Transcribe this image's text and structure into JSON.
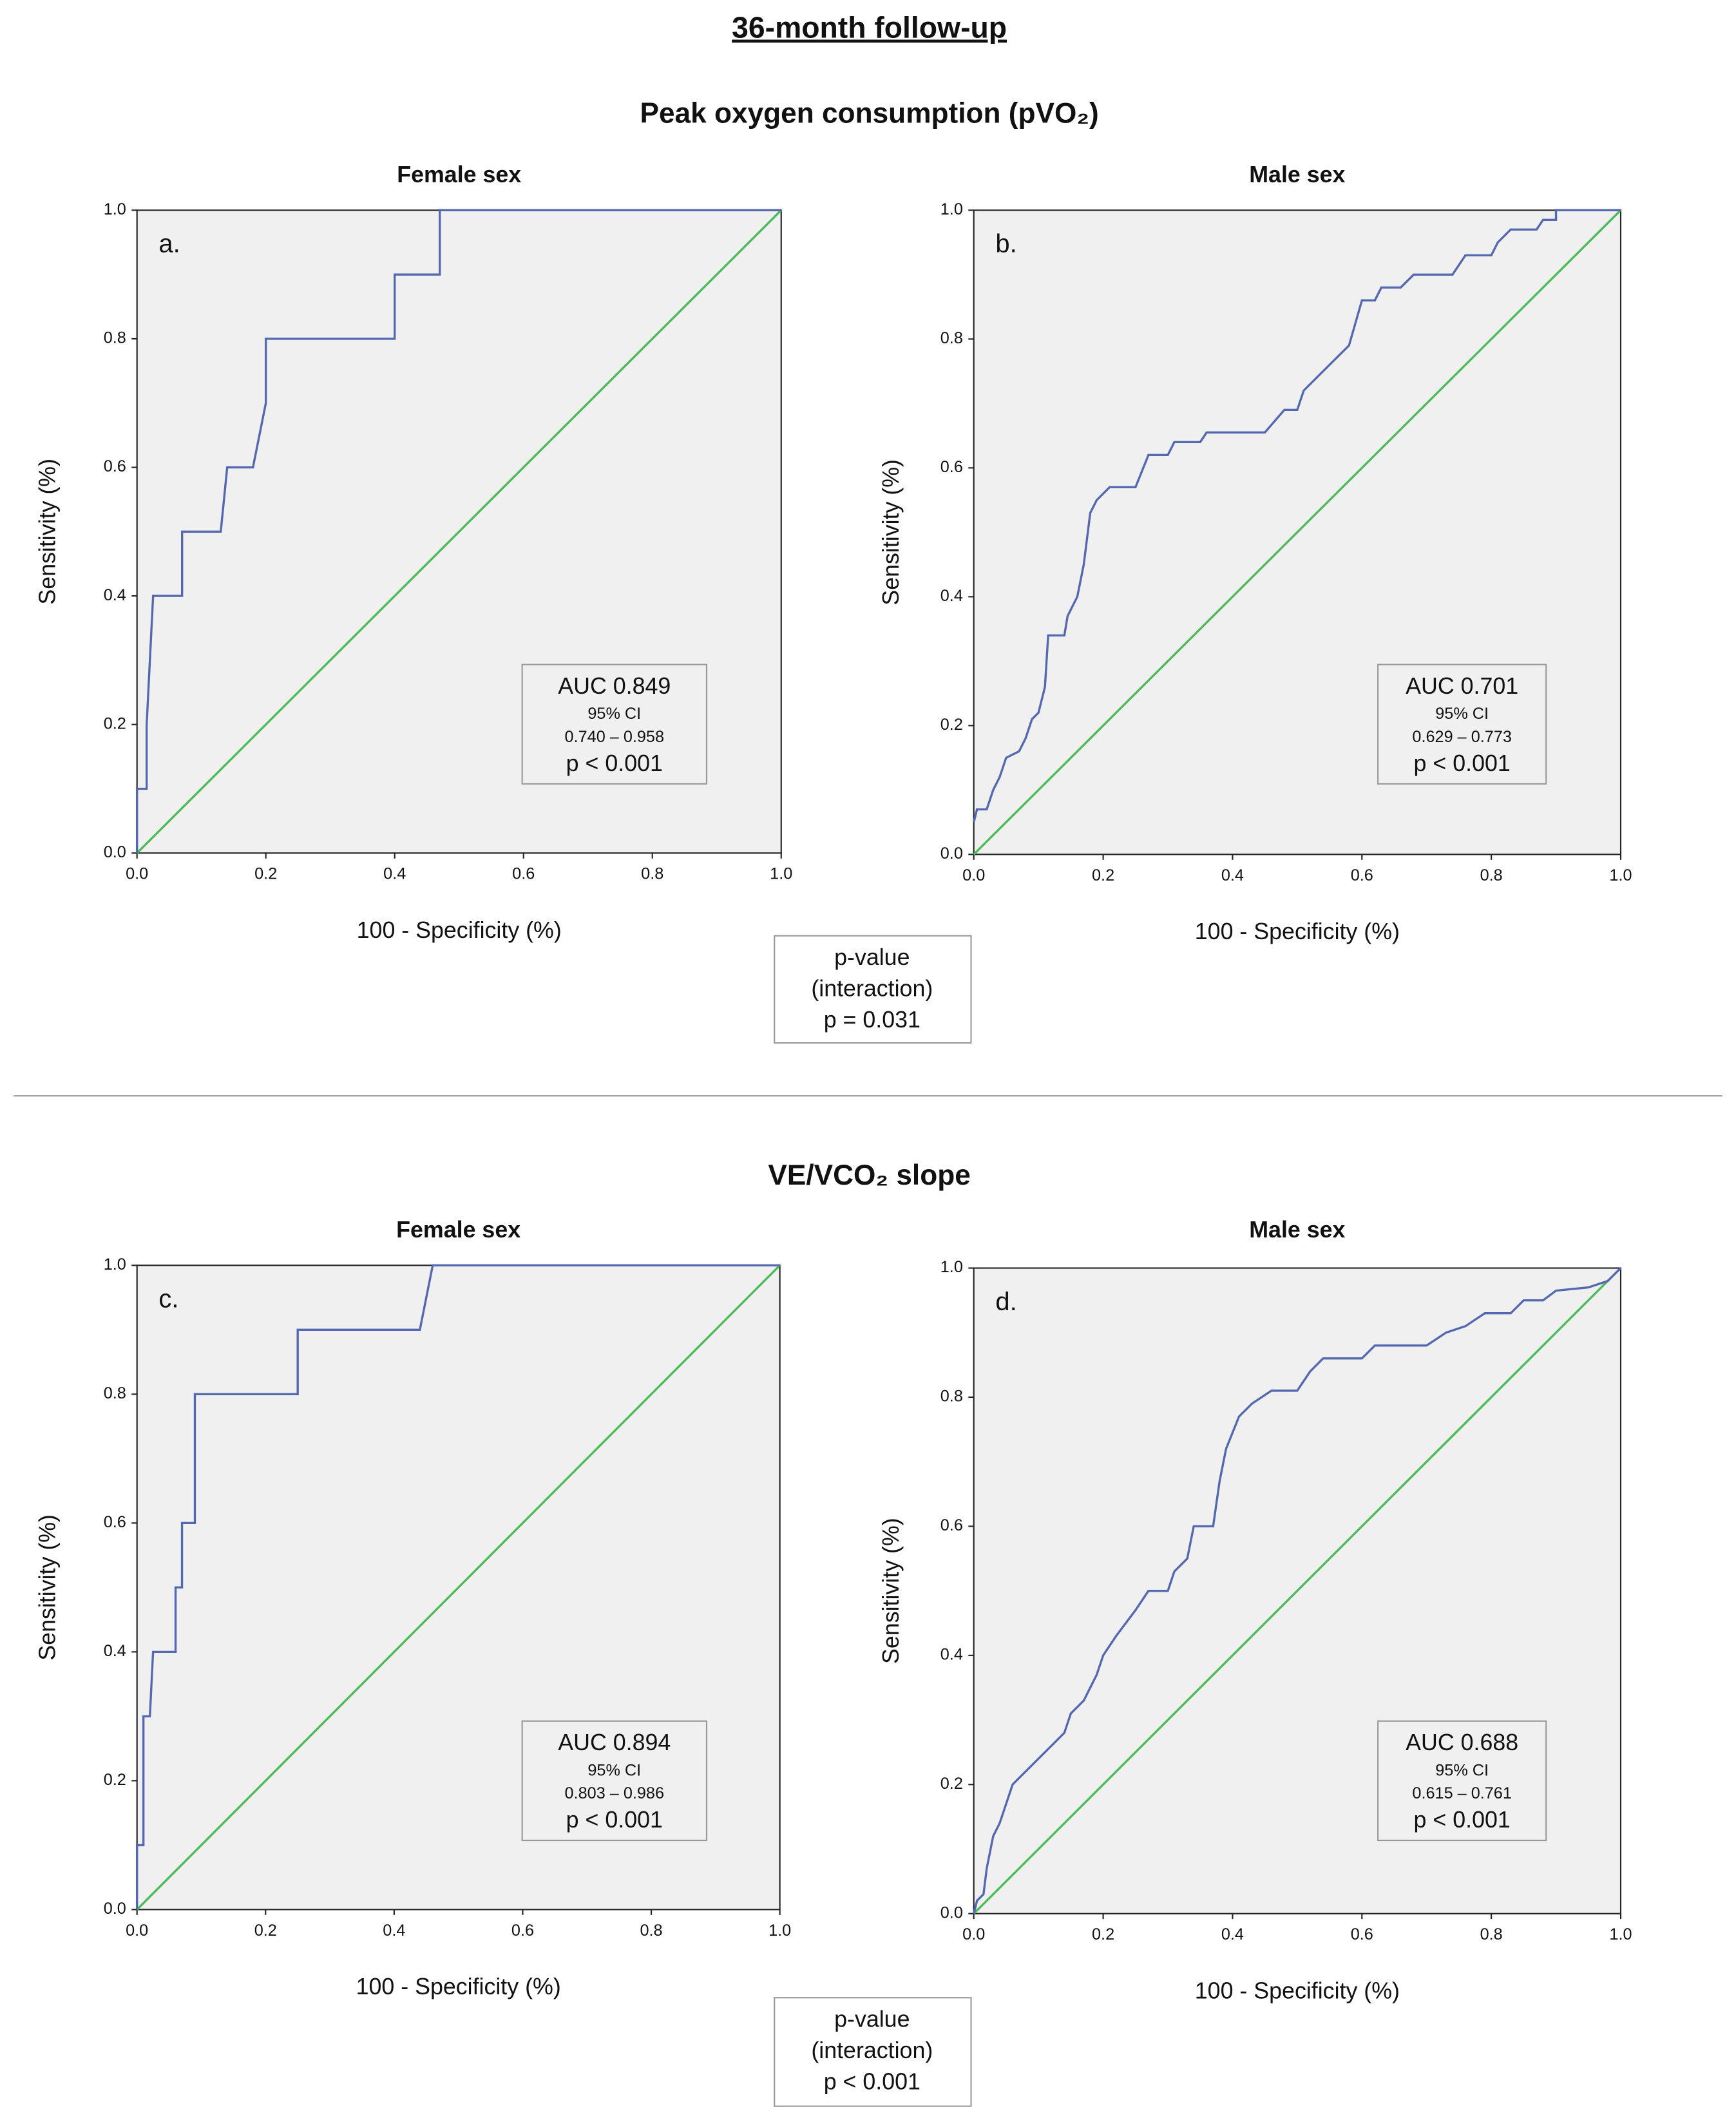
{
  "header": {
    "title": "36-month follow-up"
  },
  "sections": [
    {
      "title": "Peak oxygen consumption (pVO₂)",
      "interaction": [
        "p-value",
        "(interaction)",
        "p = 0.031"
      ]
    },
    {
      "title": "VE/VCO₂ slope",
      "interaction": [
        "p-value",
        "(interaction)",
        "p < 0.001"
      ]
    }
  ],
  "chart_data": [
    {
      "type": "line",
      "title": "Female sex",
      "panel": "a.",
      "xlabel": "100 - Specificity (%)",
      "ylabel": "Sensitivity (%)",
      "background": "#f0f0f0",
      "xlim": [
        0,
        1
      ],
      "ylim": [
        0,
        1
      ],
      "xticks": [
        {
          "value": 0,
          "label": "0.0"
        },
        {
          "value": 0.2,
          "label": "0.2"
        },
        {
          "value": 0.4,
          "label": "0.4"
        },
        {
          "value": 0.6,
          "label": "0.6"
        },
        {
          "value": 0.8,
          "label": "0.8"
        },
        {
          "value": 1,
          "label": "1.0"
        }
      ],
      "yticks": [
        {
          "value": 0,
          "label": "0.0"
        },
        {
          "value": 0.2,
          "label": "0.2"
        },
        {
          "value": 0.4,
          "label": "0.4"
        },
        {
          "value": 0.6,
          "label": "0.6"
        },
        {
          "value": 0.8,
          "label": "0.8"
        },
        {
          "value": 1,
          "label": "1.0"
        }
      ],
      "series": [
        {
          "color": "#5468b0",
          "x": [
            0,
            0,
            0.015,
            0.015,
            0.025,
            0.07,
            0.07,
            0.13,
            0.14,
            0.18,
            0.2,
            0.2,
            0.4,
            0.4,
            0.47,
            0.47,
            1
          ],
          "values": [
            0,
            0.1,
            0.1,
            0.2,
            0.4,
            0.4,
            0.5,
            0.5,
            0.6,
            0.6,
            0.7,
            0.8,
            0.8,
            0.9,
            0.9,
            1,
            1
          ]
        },
        {
          "color": "#4cbb57",
          "x": [
            0,
            1
          ],
          "values": [
            0,
            1
          ]
        }
      ],
      "annotation": [
        "AUC 0.849",
        "95% CI",
        "0.740 – 0.958",
        "p < 0.001"
      ]
    },
    {
      "type": "line",
      "title": "Male sex",
      "panel": "b.",
      "xlabel": "100 - Specificity (%)",
      "ylabel": "Sensitivity (%)",
      "background": "#f0f0f0",
      "xlim": [
        0,
        1
      ],
      "ylim": [
        0,
        1
      ],
      "xticks": [
        {
          "value": 0,
          "label": "0.0"
        },
        {
          "value": 0.2,
          "label": "0.2"
        },
        {
          "value": 0.4,
          "label": "0.4"
        },
        {
          "value": 0.6,
          "label": "0.6"
        },
        {
          "value": 0.8,
          "label": "0.8"
        },
        {
          "value": 1,
          "label": "1.0"
        }
      ],
      "yticks": [
        {
          "value": 0,
          "label": "0.0"
        },
        {
          "value": 0.2,
          "label": "0.2"
        },
        {
          "value": 0.4,
          "label": "0.4"
        },
        {
          "value": 0.6,
          "label": "0.6"
        },
        {
          "value": 0.8,
          "label": "0.8"
        },
        {
          "value": 1,
          "label": "1.0"
        }
      ],
      "series": [
        {
          "color": "#5468b0",
          "x": [
            0,
            0.005,
            0.02,
            0.03,
            0.04,
            0.05,
            0.07,
            0.08,
            0.09,
            0.1,
            0.11,
            0.115,
            0.14,
            0.145,
            0.16,
            0.17,
            0.18,
            0.19,
            0.21,
            0.25,
            0.27,
            0.3,
            0.31,
            0.35,
            0.36,
            0.45,
            0.48,
            0.5,
            0.51,
            0.53,
            0.56,
            0.58,
            0.6,
            0.62,
            0.63,
            0.66,
            0.68,
            0.74,
            0.76,
            0.8,
            0.81,
            0.83,
            0.87,
            0.88,
            0.9,
            0.9,
            1
          ],
          "values": [
            0.05,
            0.07,
            0.07,
            0.1,
            0.12,
            0.15,
            0.16,
            0.18,
            0.21,
            0.22,
            0.26,
            0.34,
            0.34,
            0.37,
            0.4,
            0.45,
            0.53,
            0.55,
            0.57,
            0.57,
            0.62,
            0.62,
            0.64,
            0.64,
            0.655,
            0.655,
            0.69,
            0.69,
            0.72,
            0.74,
            0.77,
            0.79,
            0.86,
            0.86,
            0.88,
            0.88,
            0.9,
            0.9,
            0.93,
            0.93,
            0.95,
            0.97,
            0.97,
            0.985,
            0.985,
            1,
            1
          ]
        },
        {
          "color": "#4cbb57",
          "x": [
            0,
            1
          ],
          "values": [
            0,
            1
          ]
        }
      ],
      "annotation": [
        "AUC 0.701",
        "95% CI",
        "0.629 – 0.773",
        "p < 0.001"
      ]
    },
    {
      "type": "line",
      "title": "Female sex",
      "panel": "c.",
      "xlabel": "100 - Specificity (%)",
      "ylabel": "Sensitivity (%)",
      "background": "#f0f0f0",
      "xlim": [
        0,
        1
      ],
      "ylim": [
        0,
        1
      ],
      "xticks": [
        {
          "value": 0,
          "label": "0.0"
        },
        {
          "value": 0.2,
          "label": "0.2"
        },
        {
          "value": 0.4,
          "label": "0.4"
        },
        {
          "value": 0.6,
          "label": "0.6"
        },
        {
          "value": 0.8,
          "label": "0.8"
        },
        {
          "value": 1,
          "label": "1.0"
        }
      ],
      "yticks": [
        {
          "value": 0,
          "label": "0.0"
        },
        {
          "value": 0.2,
          "label": "0.2"
        },
        {
          "value": 0.4,
          "label": "0.4"
        },
        {
          "value": 0.6,
          "label": "0.6"
        },
        {
          "value": 0.8,
          "label": "0.8"
        },
        {
          "value": 1,
          "label": "1.0"
        }
      ],
      "series": [
        {
          "color": "#5468b0",
          "x": [
            0,
            0,
            0.01,
            0.01,
            0.02,
            0.025,
            0.06,
            0.06,
            0.07,
            0.07,
            0.09,
            0.09,
            0.25,
            0.25,
            0.44,
            0.46,
            1
          ],
          "values": [
            0,
            0.1,
            0.1,
            0.3,
            0.3,
            0.4,
            0.4,
            0.5,
            0.5,
            0.6,
            0.6,
            0.8,
            0.8,
            0.9,
            0.9,
            1,
            1
          ]
        },
        {
          "color": "#4cbb57",
          "x": [
            0,
            1
          ],
          "values": [
            0,
            1
          ]
        }
      ],
      "annotation": [
        "AUC 0.894",
        "95% CI",
        "0.803 – 0.986",
        "p < 0.001"
      ]
    },
    {
      "type": "line",
      "title": "Male sex",
      "panel": "d.",
      "xlabel": "100 - Specificity (%)",
      "ylabel": "Sensitivity (%)",
      "background": "#f0f0f0",
      "xlim": [
        0,
        1
      ],
      "ylim": [
        0,
        1
      ],
      "xticks": [
        {
          "value": 0,
          "label": "0.0"
        },
        {
          "value": 0.2,
          "label": "0.2"
        },
        {
          "value": 0.4,
          "label": "0.4"
        },
        {
          "value": 0.6,
          "label": "0.6"
        },
        {
          "value": 0.8,
          "label": "0.8"
        },
        {
          "value": 1,
          "label": "1.0"
        }
      ],
      "yticks": [
        {
          "value": 0,
          "label": "0.0"
        },
        {
          "value": 0.2,
          "label": "0.2"
        },
        {
          "value": 0.4,
          "label": "0.4"
        },
        {
          "value": 0.6,
          "label": "0.6"
        },
        {
          "value": 0.8,
          "label": "0.8"
        },
        {
          "value": 1,
          "label": "1.0"
        }
      ],
      "series": [
        {
          "color": "#5468b0",
          "x": [
            0,
            0.005,
            0.015,
            0.02,
            0.03,
            0.04,
            0.05,
            0.06,
            0.08,
            0.1,
            0.12,
            0.14,
            0.15,
            0.17,
            0.19,
            0.2,
            0.22,
            0.25,
            0.27,
            0.3,
            0.31,
            0.33,
            0.34,
            0.37,
            0.38,
            0.39,
            0.41,
            0.43,
            0.46,
            0.5,
            0.52,
            0.54,
            0.6,
            0.62,
            0.7,
            0.73,
            0.76,
            0.79,
            0.83,
            0.85,
            0.88,
            0.9,
            0.95,
            0.98,
            0.99,
            1
          ],
          "values": [
            0,
            0.02,
            0.03,
            0.07,
            0.12,
            0.14,
            0.17,
            0.2,
            0.22,
            0.24,
            0.26,
            0.28,
            0.31,
            0.33,
            0.37,
            0.4,
            0.43,
            0.47,
            0.5,
            0.5,
            0.53,
            0.55,
            0.6,
            0.6,
            0.67,
            0.72,
            0.77,
            0.79,
            0.81,
            0.81,
            0.84,
            0.86,
            0.86,
            0.88,
            0.88,
            0.9,
            0.91,
            0.93,
            0.93,
            0.95,
            0.95,
            0.965,
            0.97,
            0.98,
            0.99,
            1
          ]
        },
        {
          "color": "#4cbb57",
          "x": [
            0,
            1
          ],
          "values": [
            0,
            1
          ]
        }
      ],
      "annotation": [
        "AUC 0.688",
        "95% CI",
        "0.615 – 0.761",
        "p < 0.001"
      ]
    }
  ]
}
